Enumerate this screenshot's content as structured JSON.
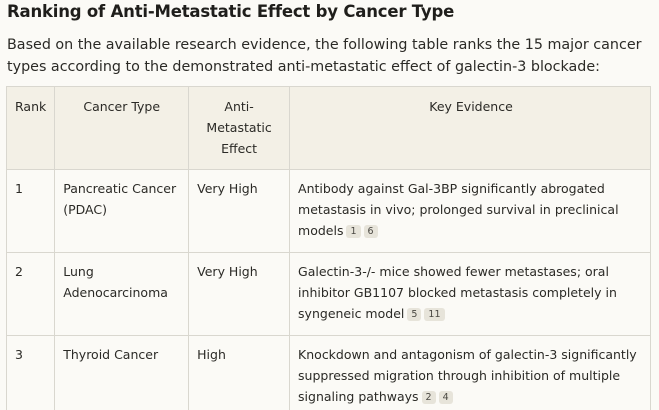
{
  "title": "Ranking of Anti-Metastatic Effect by Cancer Type",
  "intro": "Based on the available research evidence, the following table ranks the 15 major cancer types according to the demonstrated anti-metastatic effect of galectin-3 blockade:",
  "table": {
    "headers": {
      "rank": "Rank",
      "cancer_type": "Cancer Type",
      "effect": "Anti-Metastatic Effect",
      "evidence": "Key Evidence"
    },
    "rows": [
      {
        "rank": "1",
        "cancer_type": "Pancreatic Cancer (PDAC)",
        "effect": "Very High",
        "evidence": "Antibody against Gal-3BP significantly abrogated metastasis in vivo; prolonged survival in preclinical models",
        "citations": [
          "1",
          "6"
        ]
      },
      {
        "rank": "2",
        "cancer_type": "Lung Adenocarcinoma",
        "effect": "Very High",
        "evidence": "Galectin-3-/- mice showed fewer metastases; oral inhibitor GB1107 blocked metastasis completely in syngeneic model",
        "citations": [
          "5",
          "11"
        ]
      },
      {
        "rank": "3",
        "cancer_type": "Thyroid Cancer",
        "effect": "High",
        "evidence": "Knockdown and antagonism of galectin-3 significantly suppressed migration through inhibition of multiple signaling pathways",
        "citations": [
          "2",
          "4"
        ]
      }
    ]
  }
}
